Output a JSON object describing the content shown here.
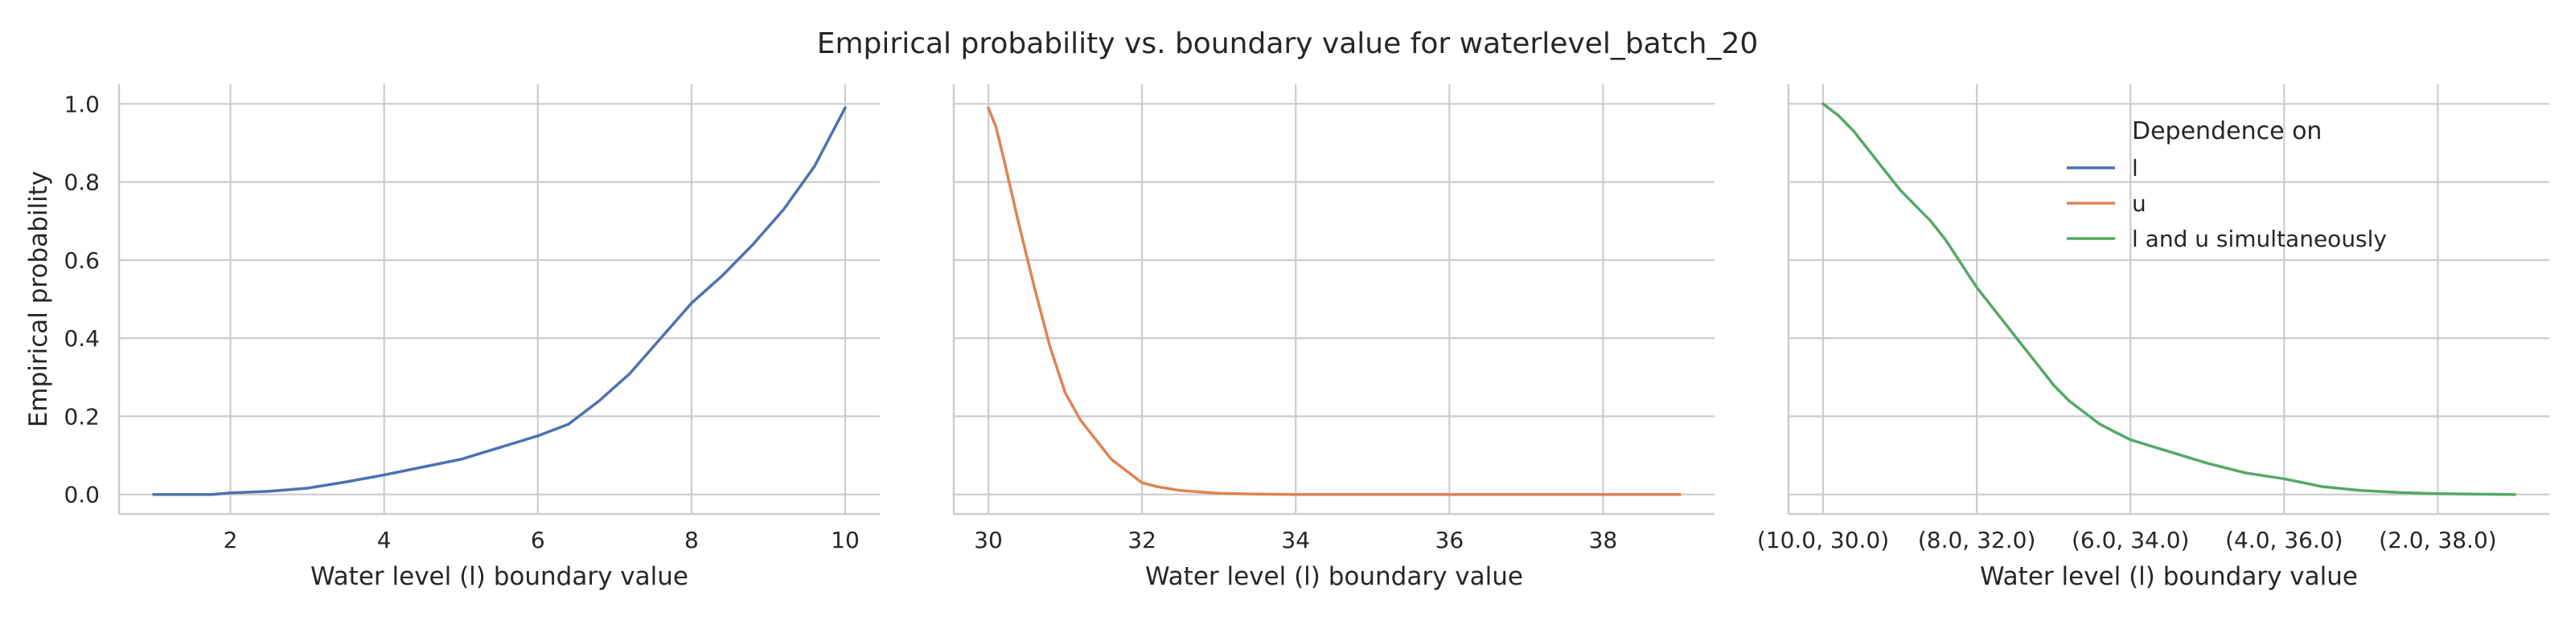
{
  "title": "Empirical probability vs. boundary value for waterlevel_batch_20",
  "colors": {
    "l": "#4c72b0",
    "u": "#dd8452",
    "lu": "#55a868",
    "grid": "#cccccc",
    "axis": "#cccccc",
    "text": "#262626"
  },
  "chart_data": [
    {
      "type": "line",
      "xlabel": "Water level (l) boundary value",
      "ylabel": "Empirical probability",
      "xlim": [
        0.55,
        10.45
      ],
      "ylim": [
        -0.05,
        1.05
      ],
      "xticks": [
        2,
        4,
        6,
        8,
        10
      ],
      "xtick_labels": [
        "2",
        "4",
        "6",
        "8",
        "10"
      ],
      "yticks": [
        0.0,
        0.2,
        0.4,
        0.6,
        0.8,
        1.0
      ],
      "ytick_labels": [
        "0.0",
        "0.2",
        "0.4",
        "0.6",
        "0.8",
        "1.0"
      ],
      "grid": true,
      "series": [
        {
          "key": "l",
          "x": [
            1.0,
            1.5,
            1.75,
            2.0,
            2.5,
            3.0,
            3.5,
            4.0,
            4.5,
            5.0,
            5.5,
            6.0,
            6.4,
            6.8,
            7.2,
            7.6,
            8.0,
            8.4,
            8.8,
            9.2,
            9.6,
            10.0
          ],
          "y": [
            0.0,
            0.0,
            0.0,
            0.004,
            0.008,
            0.016,
            0.032,
            0.05,
            0.07,
            0.09,
            0.12,
            0.15,
            0.18,
            0.24,
            0.31,
            0.4,
            0.49,
            0.56,
            0.64,
            0.73,
            0.84,
            0.99
          ]
        }
      ]
    },
    {
      "type": "line",
      "xlabel": "Water level (l) boundary value",
      "ylabel": "",
      "xlim": [
        29.55,
        39.45
      ],
      "ylim": [
        -0.05,
        1.05
      ],
      "xticks": [
        30,
        32,
        34,
        36,
        38
      ],
      "xtick_labels": [
        "30",
        "32",
        "34",
        "36",
        "38"
      ],
      "yticks": [
        0.0,
        0.2,
        0.4,
        0.6,
        0.8,
        1.0
      ],
      "ytick_labels": [],
      "grid": true,
      "series": [
        {
          "key": "u",
          "x": [
            30.0,
            30.1,
            30.2,
            30.4,
            30.6,
            30.8,
            31.0,
            31.2,
            31.4,
            31.6,
            31.8,
            32.0,
            32.2,
            32.5,
            33.0,
            33.5,
            34.0,
            35.0,
            36.0,
            37.0,
            38.0,
            39.0
          ],
          "y": [
            0.99,
            0.94,
            0.86,
            0.69,
            0.53,
            0.38,
            0.26,
            0.19,
            0.14,
            0.09,
            0.06,
            0.03,
            0.02,
            0.01,
            0.003,
            0.001,
            0.0,
            0.0,
            0.0,
            0.0,
            0.0,
            0.0
          ]
        }
      ]
    },
    {
      "type": "line",
      "xlabel": "Water level (l) boundary value",
      "ylabel": "",
      "xlim": [
        -0.45,
        9.45
      ],
      "ylim": [
        -0.05,
        1.05
      ],
      "xticks": [
        0,
        2,
        4,
        6,
        8
      ],
      "xtick_labels": [
        "(10.0, 30.0)",
        "(8.0, 32.0)",
        "(6.0, 34.0)",
        "(4.0, 36.0)",
        "(2.0, 38.0)"
      ],
      "yticks": [
        0.0,
        0.2,
        0.4,
        0.6,
        0.8,
        1.0
      ],
      "ytick_labels": [],
      "grid": true,
      "legend": {
        "title": "Dependence on",
        "placement": "upper-right",
        "entries": [
          {
            "key": "l",
            "label": "l"
          },
          {
            "key": "u",
            "label": "u"
          },
          {
            "key": "lu",
            "label": "l and u simultaneously"
          }
        ]
      },
      "series": [
        {
          "key": "lu",
          "x": [
            0.0,
            0.2,
            0.4,
            0.6,
            0.8,
            1.0,
            1.2,
            1.4,
            1.6,
            1.8,
            2.0,
            2.2,
            2.4,
            2.6,
            2.8,
            3.0,
            3.2,
            3.4,
            3.6,
            3.8,
            4.0,
            4.5,
            5.0,
            5.5,
            6.0,
            6.5,
            7.0,
            7.5,
            8.0,
            8.5,
            9.0
          ],
          "y": [
            1.0,
            0.97,
            0.93,
            0.88,
            0.83,
            0.78,
            0.74,
            0.7,
            0.65,
            0.59,
            0.53,
            0.48,
            0.43,
            0.38,
            0.33,
            0.28,
            0.24,
            0.21,
            0.18,
            0.16,
            0.14,
            0.11,
            0.08,
            0.055,
            0.04,
            0.02,
            0.01,
            0.005,
            0.002,
            0.001,
            0.0
          ]
        }
      ]
    }
  ]
}
